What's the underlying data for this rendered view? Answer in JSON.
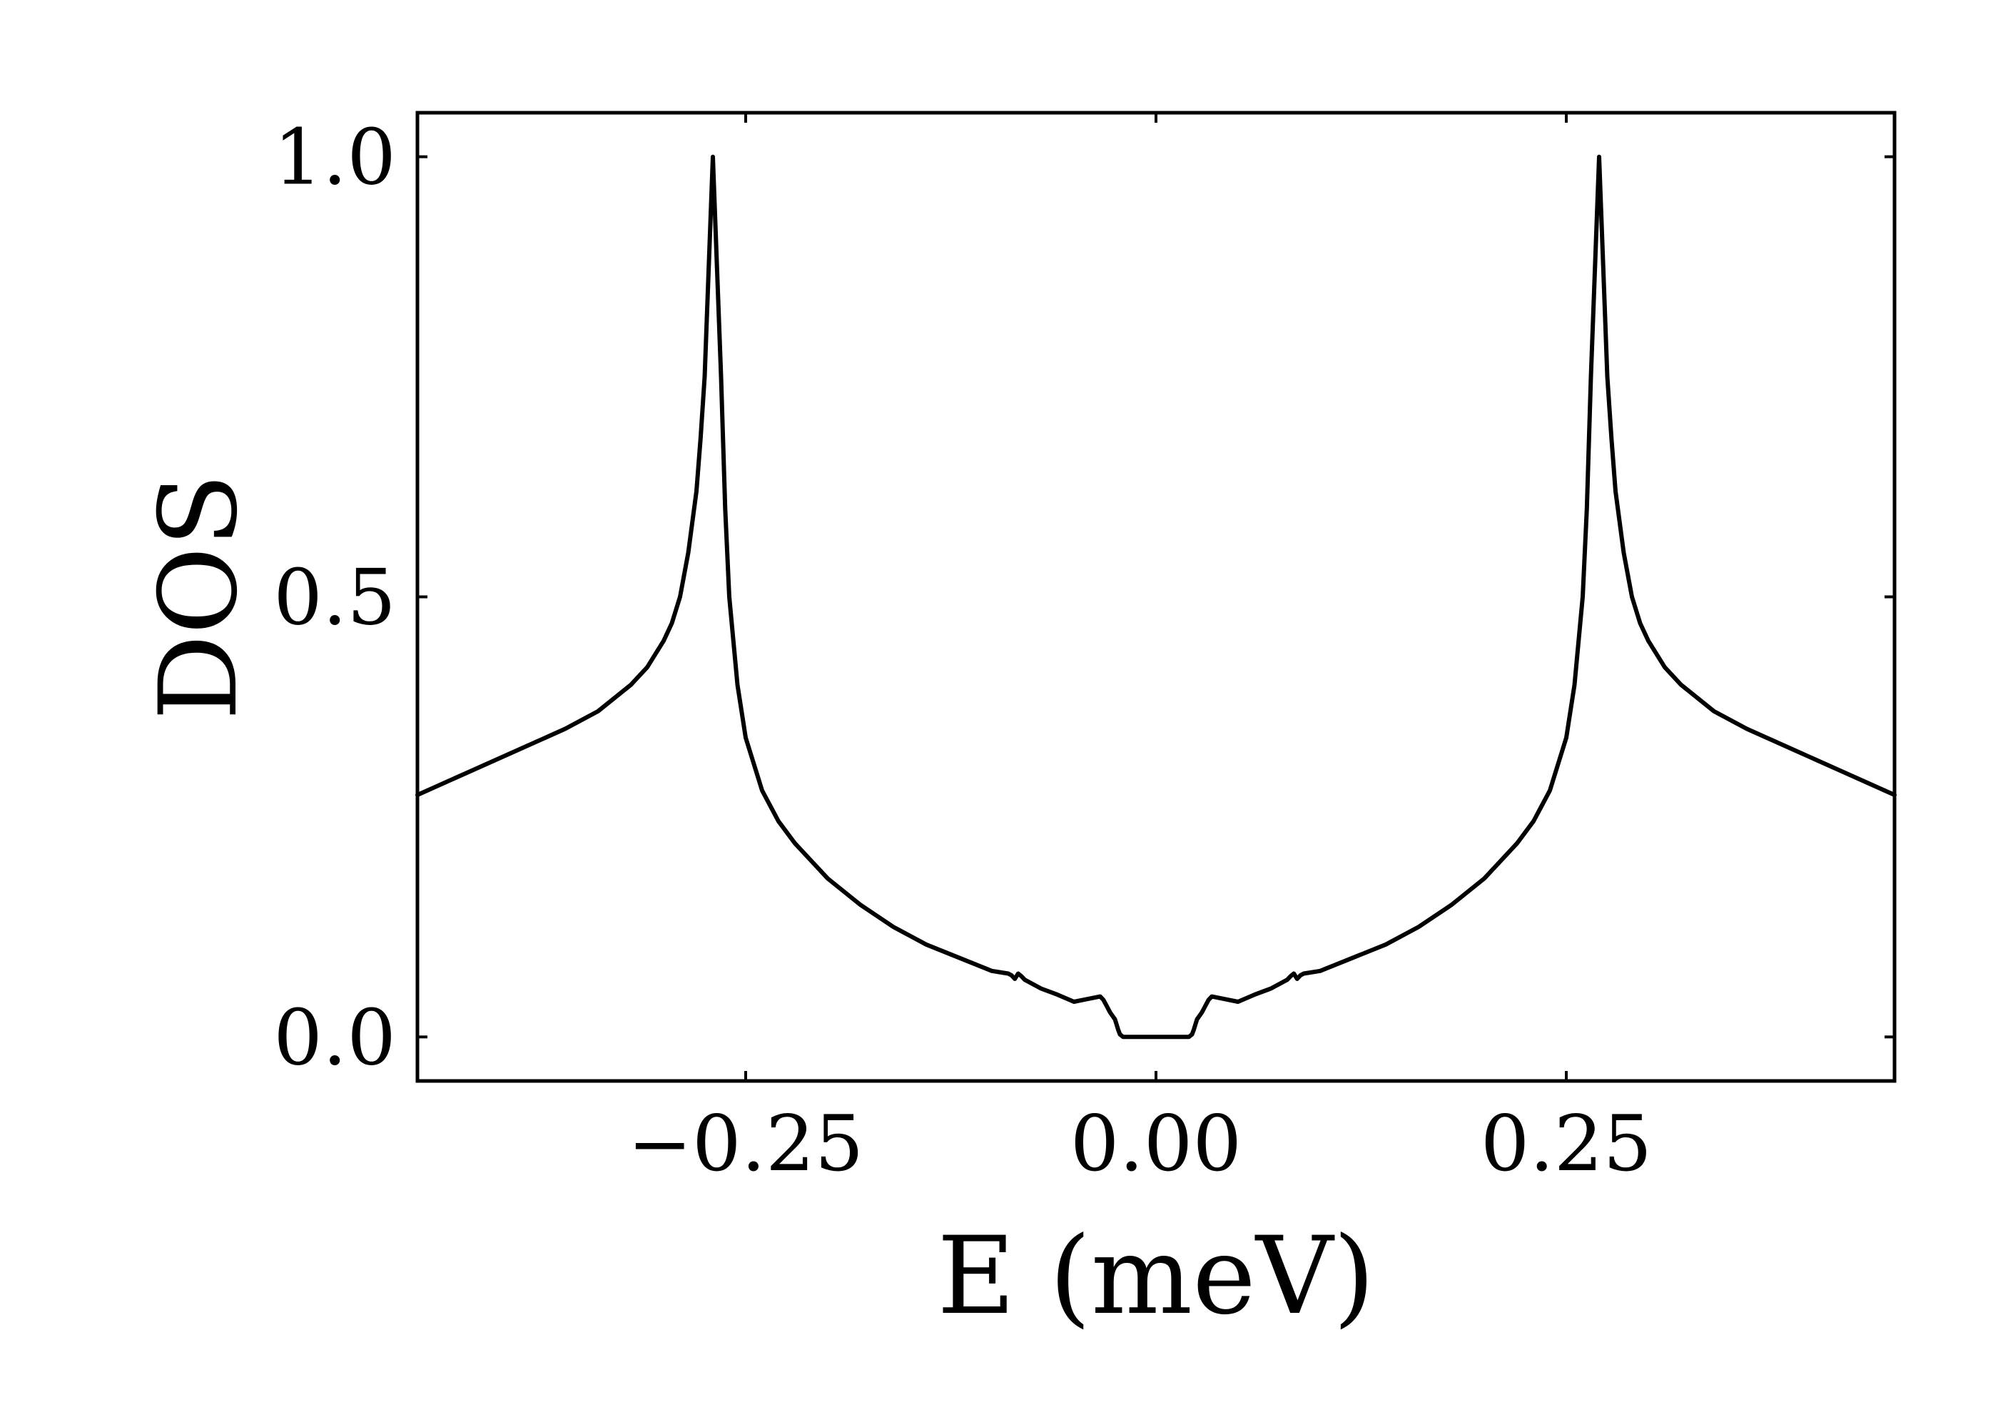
{
  "chart_data": {
    "type": "line",
    "title": "",
    "xlabel": "E (meV)",
    "ylabel": "DOS",
    "xlim": [
      -0.45,
      0.45
    ],
    "ylim": [
      -0.05,
      1.05
    ],
    "xticks": [
      -0.25,
      0.0,
      0.25
    ],
    "xtick_labels": [
      "−0.25",
      "0.00",
      "0.25"
    ],
    "yticks": [
      0.0,
      0.5,
      1.0
    ],
    "ytick_labels": [
      "0.0",
      "0.5",
      "1.0"
    ],
    "grid": false,
    "legend": "none",
    "line_color": "#000000",
    "series": [
      {
        "x": [
          -0.45,
          -0.42,
          -0.39,
          -0.36,
          -0.34,
          -0.32,
          -0.31,
          -0.3,
          -0.295,
          -0.29,
          -0.285,
          -0.28,
          -0.2775,
          -0.275,
          -0.273,
          -0.271,
          -0.27,
          -0.269,
          -0.267,
          -0.265,
          -0.2625,
          -0.26,
          -0.255,
          -0.25,
          -0.24,
          -0.23,
          -0.22,
          -0.2,
          -0.18,
          -0.16,
          -0.14,
          -0.12,
          -0.1,
          -0.09,
          -0.088,
          -0.086,
          -0.084,
          -0.082,
          -0.08,
          -0.07,
          -0.06,
          -0.05,
          -0.034,
          -0.032,
          -0.03,
          -0.028,
          -0.025,
          -0.023,
          -0.022,
          -0.02,
          -0.015,
          0.0,
          0.015,
          0.02,
          0.022,
          0.023,
          0.025,
          0.028,
          0.03,
          0.032,
          0.034,
          0.05,
          0.06,
          0.07,
          0.08,
          0.082,
          0.084,
          0.086,
          0.088,
          0.09,
          0.1,
          0.12,
          0.14,
          0.16,
          0.18,
          0.2,
          0.22,
          0.23,
          0.24,
          0.25,
          0.255,
          0.26,
          0.2625,
          0.265,
          0.267,
          0.269,
          0.27,
          0.271,
          0.273,
          0.275,
          0.2775,
          0.28,
          0.285,
          0.29,
          0.295,
          0.3,
          0.31,
          0.32,
          0.34,
          0.36,
          0.39,
          0.42,
          0.45
        ],
        "y": [
          0.275,
          0.3,
          0.325,
          0.35,
          0.37,
          0.4,
          0.42,
          0.45,
          0.47,
          0.5,
          0.55,
          0.62,
          0.68,
          0.75,
          0.85,
          0.95,
          1.0,
          0.95,
          0.85,
          0.75,
          0.6,
          0.5,
          0.4,
          0.34,
          0.28,
          0.245,
          0.22,
          0.18,
          0.15,
          0.125,
          0.105,
          0.09,
          0.075,
          0.072,
          0.07,
          0.066,
          0.072,
          0.069,
          0.065,
          0.055,
          0.048,
          0.04,
          0.046,
          0.042,
          0.035,
          0.028,
          0.02,
          0.008,
          0.003,
          0.0,
          0.0,
          0.0,
          0.0,
          0.0,
          0.003,
          0.008,
          0.02,
          0.028,
          0.035,
          0.042,
          0.046,
          0.04,
          0.048,
          0.055,
          0.065,
          0.069,
          0.072,
          0.066,
          0.07,
          0.072,
          0.075,
          0.09,
          0.105,
          0.125,
          0.15,
          0.18,
          0.22,
          0.245,
          0.28,
          0.34,
          0.4,
          0.5,
          0.6,
          0.75,
          0.85,
          0.95,
          1.0,
          0.95,
          0.85,
          0.75,
          0.68,
          0.62,
          0.55,
          0.5,
          0.47,
          0.45,
          0.42,
          0.4,
          0.37,
          0.35,
          0.325,
          0.3,
          0.275
        ]
      }
    ]
  }
}
